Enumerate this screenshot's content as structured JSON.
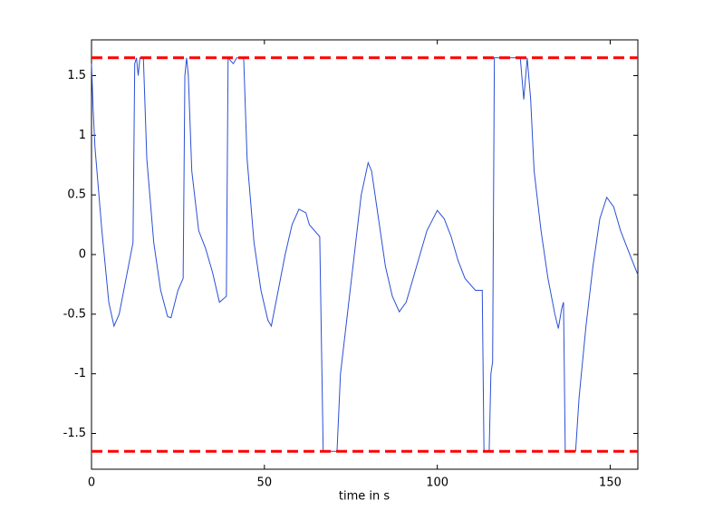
{
  "chart_data": {
    "type": "line",
    "xlabel": "time in s",
    "xlim": [
      0,
      158
    ],
    "ylim": [
      -1.8,
      1.8
    ],
    "xticks": [
      0,
      50,
      100,
      150
    ],
    "yticks": [
      -1.5,
      -1,
      -0.5,
      0,
      0.5,
      1,
      1.5
    ],
    "hlines": [
      {
        "value": 1.65,
        "color": "#ff0000"
      },
      {
        "value": -1.65,
        "color": "#ff0000"
      }
    ],
    "series": [
      {
        "color": "#2b4fd6",
        "x": [
          0,
          0.5,
          1,
          3,
          5,
          6.5,
          8,
          10,
          12,
          12.5,
          13,
          13.5,
          14,
          15,
          16,
          18,
          20,
          22,
          23,
          25,
          26.5,
          27,
          27.5,
          28,
          29,
          31,
          33,
          35,
          37,
          39,
          39.5,
          41,
          42,
          44,
          45,
          47,
          49,
          51,
          52,
          54,
          56,
          58,
          60,
          62,
          63,
          66,
          67,
          71,
          72,
          74,
          76,
          78,
          80,
          81,
          83,
          85,
          87,
          89,
          91,
          93,
          95,
          97,
          100,
          102,
          104,
          106,
          108,
          111,
          113,
          113.5,
          115,
          115.5,
          116,
          116.5,
          120,
          124,
          125,
          126,
          127,
          128,
          130,
          132,
          134,
          135,
          136,
          136.5,
          137,
          140,
          141,
          143,
          145,
          147,
          149,
          151,
          153,
          155,
          158
        ],
        "values": [
          1.6,
          1.2,
          0.9,
          0.2,
          -0.4,
          -0.6,
          -0.5,
          -0.2,
          0.1,
          1.6,
          1.65,
          1.5,
          1.65,
          1.65,
          0.8,
          0.1,
          -0.3,
          -0.52,
          -0.53,
          -0.3,
          -0.2,
          1.5,
          1.65,
          1.5,
          0.7,
          0.2,
          0.05,
          -0.15,
          -0.4,
          -0.35,
          1.65,
          1.6,
          1.65,
          1.65,
          0.8,
          0.1,
          -0.3,
          -0.55,
          -0.6,
          -0.3,
          0,
          0.25,
          0.38,
          0.35,
          0.25,
          0.15,
          -1.65,
          -1.65,
          -1.0,
          -0.5,
          0,
          0.5,
          0.77,
          0.7,
          0.3,
          -0.1,
          -0.35,
          -0.48,
          -0.4,
          -0.2,
          0,
          0.2,
          0.37,
          0.3,
          0.15,
          -0.05,
          -0.2,
          -0.3,
          -0.3,
          -1.65,
          -1.65,
          -1.0,
          -0.9,
          1.65,
          1.65,
          1.65,
          1.3,
          1.65,
          1.3,
          0.7,
          0.2,
          -0.2,
          -0.5,
          -0.62,
          -0.45,
          -0.4,
          -1.65,
          -1.65,
          -1.2,
          -0.6,
          -0.1,
          0.3,
          0.48,
          0.4,
          0.2,
          0.05,
          -0.17
        ]
      }
    ]
  }
}
